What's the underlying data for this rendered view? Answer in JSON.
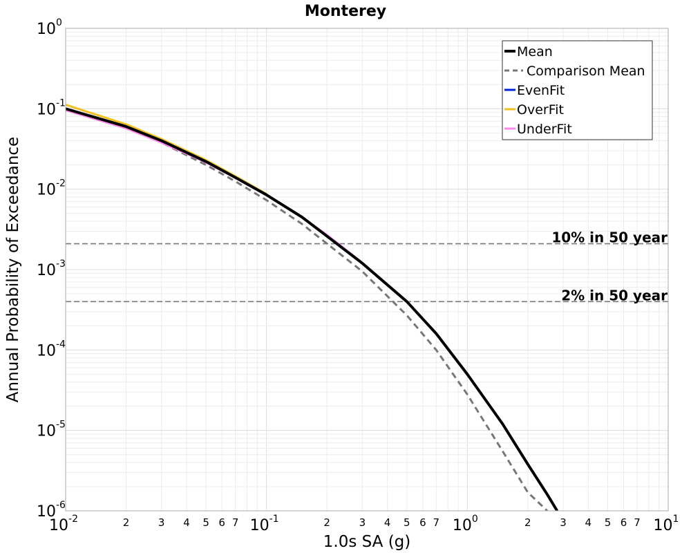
{
  "chart_data": {
    "type": "line",
    "title": "Monterey",
    "xlabel": "1.0s SA (g)",
    "ylabel": "Annual Probability of Exceedance",
    "x_scale": "log",
    "y_scale": "log",
    "xlim": [
      0.01,
      10
    ],
    "ylim": [
      1e-06,
      1
    ],
    "grid": true,
    "legend_position": "top-right",
    "x_major_ticks": [
      {
        "base": "10",
        "exp": "-2"
      },
      {
        "base": "10",
        "exp": "-1"
      },
      {
        "base": "10",
        "exp": "0"
      },
      {
        "base": "10",
        "exp": "1"
      }
    ],
    "y_major_ticks": [
      {
        "base": "10",
        "exp": "0"
      },
      {
        "base": "10",
        "exp": "-1"
      },
      {
        "base": "10",
        "exp": "-2"
      },
      {
        "base": "10",
        "exp": "-3"
      },
      {
        "base": "10",
        "exp": "-4"
      },
      {
        "base": "10",
        "exp": "-5"
      },
      {
        "base": "10",
        "exp": "-6"
      }
    ],
    "x_minor_tick_labels": [
      "2",
      "3",
      "4",
      "5",
      "6",
      "7"
    ],
    "series": [
      {
        "name": "Mean",
        "color": "#000000",
        "style": "solid",
        "x": [
          0.01,
          0.02,
          0.03,
          0.05,
          0.07,
          0.1,
          0.15,
          0.2,
          0.3,
          0.5,
          0.7,
          1.0,
          1.5,
          2.0,
          2.5,
          2.8
        ],
        "y": [
          0.1,
          0.06,
          0.04,
          0.022,
          0.014,
          0.0085,
          0.0045,
          0.0026,
          0.0012,
          0.0004,
          0.00016,
          5e-05,
          1.2e-05,
          3.8e-06,
          1.6e-06,
          1e-06
        ]
      },
      {
        "name": "Comparison Mean",
        "color": "#777777",
        "style": "dashed",
        "x": [
          0.01,
          0.02,
          0.03,
          0.05,
          0.07,
          0.1,
          0.15,
          0.2,
          0.3,
          0.5,
          0.7,
          1.0,
          1.5,
          2.0,
          2.5
        ],
        "y": [
          0.1,
          0.059,
          0.038,
          0.02,
          0.0125,
          0.0073,
          0.0037,
          0.0021,
          0.00095,
          0.00027,
          0.0001,
          2.8e-05,
          5.5e-06,
          1.7e-06,
          1e-06
        ]
      },
      {
        "name": "EvenFit",
        "color": "#0022dd",
        "style": "solid",
        "x": [
          0.01,
          0.02,
          0.03,
          0.05,
          0.07,
          0.1,
          0.15,
          0.2,
          0.3,
          0.5,
          0.7,
          1.0,
          1.5,
          2.0,
          2.5,
          2.8
        ],
        "y": [
          0.1,
          0.06,
          0.04,
          0.022,
          0.014,
          0.0085,
          0.0045,
          0.0026,
          0.0012,
          0.0004,
          0.00016,
          5e-05,
          1.2e-05,
          3.8e-06,
          1.6e-06,
          1e-06
        ]
      },
      {
        "name": "OverFit",
        "color": "#f0c020",
        "style": "solid",
        "x": [
          0.01,
          0.02,
          0.03,
          0.05,
          0.07,
          0.1
        ],
        "y": [
          0.112,
          0.064,
          0.042,
          0.023,
          0.0145,
          0.0087
        ]
      },
      {
        "name": "UnderFit",
        "color": "#ff88ee",
        "style": "solid",
        "x": [
          0.01,
          0.02,
          0.03,
          0.05,
          0.07,
          0.1,
          0.15,
          0.2,
          0.3
        ],
        "y": [
          0.096,
          0.057,
          0.038,
          0.0215,
          0.0138,
          0.0084,
          0.0045,
          0.0027,
          0.00122
        ]
      }
    ],
    "reference_lines": [
      {
        "label": "10% in 50 year",
        "y": 0.0021,
        "color": "#777777"
      },
      {
        "label": "2% in 50 year",
        "y": 0.0004,
        "color": "#777777"
      }
    ]
  }
}
